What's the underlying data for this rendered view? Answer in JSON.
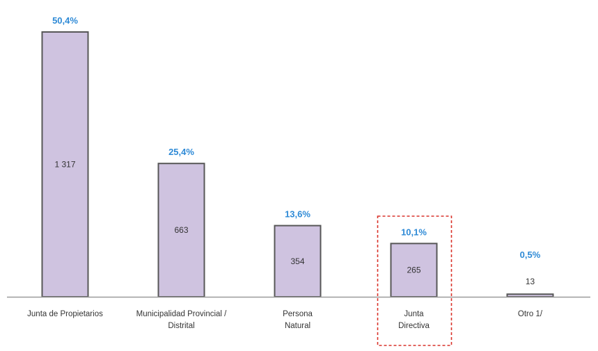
{
  "chart_data": {
    "type": "bar",
    "title": "",
    "xlabel": "",
    "ylabel": "",
    "categories": [
      [
        "Junta de Propietarios"
      ],
      [
        "Municipalidad Provincial /",
        "Distrital"
      ],
      [
        "Persona",
        "Natural"
      ],
      [
        "Junta",
        "Directiva"
      ],
      [
        "Otro 1/"
      ]
    ],
    "values": [
      1317,
      663,
      354,
      265,
      13
    ],
    "value_labels": [
      "1 317",
      "663",
      "354",
      "265",
      "13"
    ],
    "percent_labels": [
      "50,4%",
      "25,4%",
      "13,6%",
      "10,1%",
      "0,5%"
    ],
    "ylim": [
      0,
      1317
    ],
    "grid": false,
    "highlighted_category_index": 3
  },
  "colors": {
    "bar_fill": "#cfc3e0",
    "bar_stroke": "#575757",
    "percent_label": "#2e8ad6",
    "axis": "#9a9a9a",
    "value_text": "#333333",
    "category_text": "#333333",
    "highlight_box": "#d9322a"
  }
}
